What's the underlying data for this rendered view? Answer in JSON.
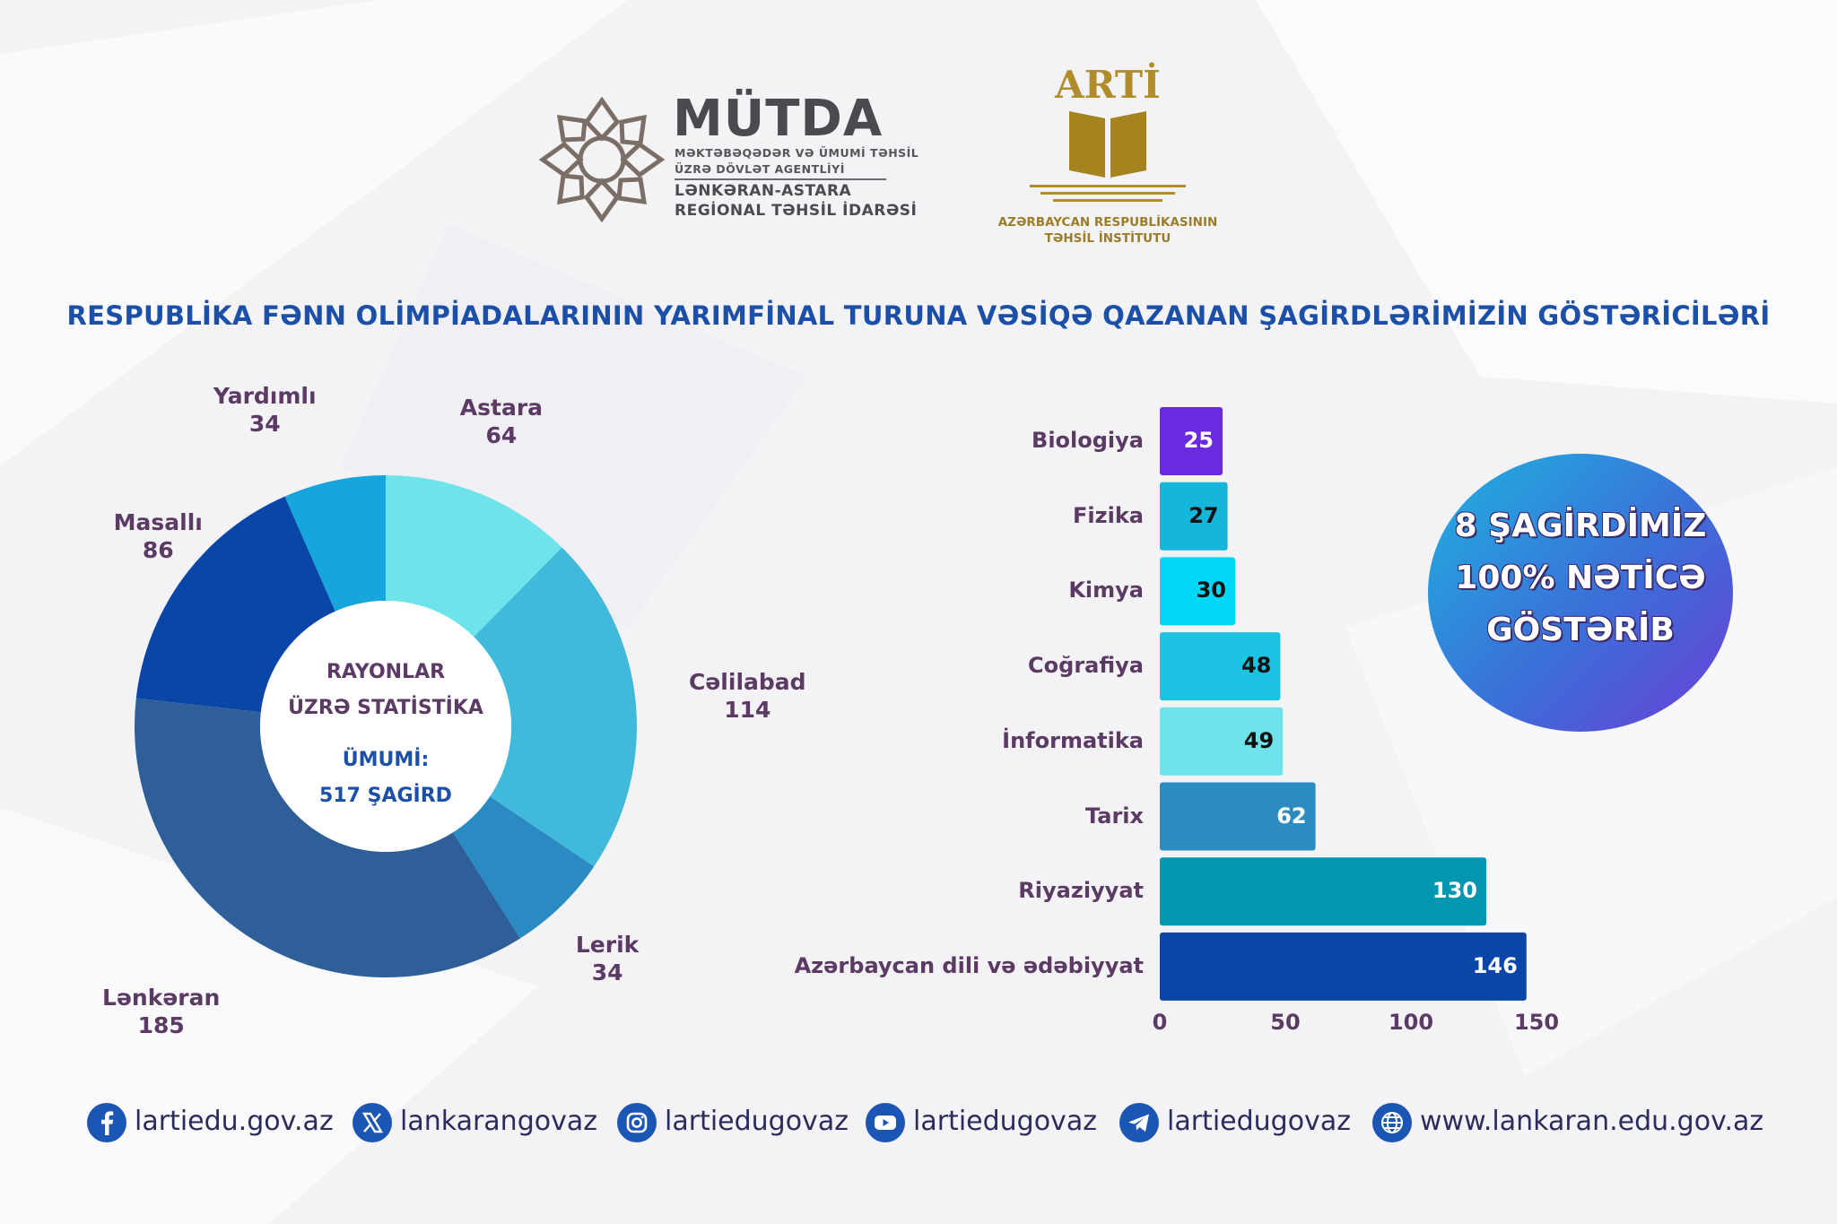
{
  "logos": {
    "mutda": {
      "name": "MÜTDA",
      "line1": "MƏKTƏBƏQƏDƏR VƏ ÜMUMİ TƏHSİL",
      "line2": "ÜZRƏ DÖVLƏT AGENTLİYİ",
      "region1": "LƏNKƏRAN-ASTARA",
      "region2": "REGİONAL TƏHSİL İDARƏSİ"
    },
    "arti": {
      "name": "ARTİ",
      "line1": "AZƏRBAYCAN RESPUBLİKASININ",
      "line2": "TƏHSİL İNSTİTUTU"
    }
  },
  "title": "RESPUBLİKA FƏNN OLİMPİADALARININ YARIMFİNAL TURUNA VƏSİQƏ QAZANAN ŞAGİRDLƏRİMİZİN GÖSTƏRİCİLƏRİ",
  "colors": {
    "title": "#1b4fa8",
    "label": "#5b3a64",
    "astara": "#6ee4ea",
    "celilabad": "#41b9da",
    "lerik": "#2a8bc2",
    "lenkeran": "#2f5f98",
    "masalli": "#0a45a8",
    "yardimli": "#17a6db"
  },
  "chart_data": [
    {
      "type": "pie",
      "style": "donut",
      "center_text": {
        "line1": "RAYONLAR",
        "line2": "ÜZRƏ STATİSTİKA",
        "line3": "ÜMUMİ:",
        "line4": "517 ŞAGİRD"
      },
      "slices": [
        {
          "label": "Astara",
          "value": 64,
          "color": "#6ee4ea"
        },
        {
          "label": "Cəlilabad",
          "value": 114,
          "color": "#41b9da"
        },
        {
          "label": "Lerik",
          "value": 34,
          "color": "#2a8bc2"
        },
        {
          "label": "Lənkəran",
          "value": 185,
          "color": "#2f5f98"
        },
        {
          "label": "Masallı",
          "value": 86,
          "color": "#0a45a8"
        },
        {
          "label": "Yardımlı",
          "value": 34,
          "color": "#17a6db"
        }
      ]
    },
    {
      "type": "bar",
      "orientation": "horizontal",
      "categories": [
        "Biologiya",
        "Fizika",
        "Kimya",
        "Coğrafiya",
        "İnformatika",
        "Tarix",
        "Riyaziyyat",
        "Azərbaycan dili və ədəbiyyat"
      ],
      "values": [
        25,
        27,
        30,
        48,
        49,
        62,
        130,
        146
      ],
      "colors": [
        "#6a2be0",
        "#14b6dc",
        "#00d6f5",
        "#1cc3e2",
        "#6ee4ea",
        "#2c8bbf",
        "#0297b0",
        "#0a45a8"
      ],
      "value_label_colors": [
        "#ffffff",
        "#111111",
        "#111111",
        "#111111",
        "#111111",
        "#ffffff",
        "#ffffff",
        "#ffffff"
      ],
      "xlim": [
        0,
        150
      ],
      "xticks": [
        0,
        50,
        100,
        150
      ],
      "grid": false
    }
  ],
  "badge": {
    "line1": "8 ŞAGİRDİMİZ",
    "line2": "100% NƏTİCƏ",
    "line3": "GÖSTƏRİB"
  },
  "social": [
    {
      "icon": "facebook-icon",
      "text": "lartiedu.gov.az"
    },
    {
      "icon": "x-icon",
      "text": "lankarangovaz"
    },
    {
      "icon": "instagram-icon",
      "text": "lartiedugovaz"
    },
    {
      "icon": "youtube-icon",
      "text": "lartiedugovaz"
    },
    {
      "icon": "telegram-icon",
      "text": "lartiedugovaz"
    },
    {
      "icon": "globe-icon",
      "text": "www.lankaran.edu.gov.az"
    }
  ]
}
